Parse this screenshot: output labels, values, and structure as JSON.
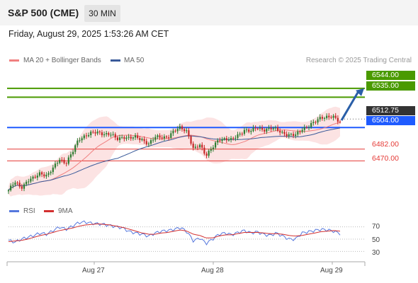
{
  "header": {
    "title": "S&P 500 (CME)",
    "timeframe": "30 MIN"
  },
  "datetime": "Friday, August 29, 2025 1:53:26 AM CET",
  "credit": "Research © 2025 Trading Central",
  "legend": {
    "ma20": "MA 20 + Bollinger Bands",
    "ma50": "MA 50",
    "rsi": "RSI",
    "rsi_ma": "9MA"
  },
  "colors": {
    "up": "#2e7d32",
    "down": "#c62828",
    "ma20": "#f08080",
    "ma50": "#3a5a9a",
    "support": "#1f5bff",
    "resistance": "#4a9a00",
    "level_red": "#e53935",
    "rsi": "#5577dd",
    "rsi_ma": "#d32f2f",
    "arrow": "#2a5fa8"
  },
  "chart_data": [
    {
      "type": "candlestick",
      "title": "",
      "xlabel": "",
      "ylabel": "",
      "x_ticks": [
        "Aug 27",
        "Aug 28",
        "Aug 29"
      ],
      "current_price": "6512.75",
      "levels": [
        {
          "label": "6544.00",
          "value": 6544.0,
          "kind": "resistance"
        },
        {
          "label": "6535.00",
          "value": 6535.0,
          "kind": "resistance"
        },
        {
          "label": "6504.00",
          "value": 6504.0,
          "kind": "pivot"
        },
        {
          "label": "6482.00",
          "value": 6482.0,
          "kind": "support"
        },
        {
          "label": "6470.00",
          "value": 6470.0,
          "kind": "support"
        }
      ],
      "close_path": [
        6440,
        6448,
        6443,
        6450,
        6452,
        6458,
        6455,
        6462,
        6472,
        6468,
        6478,
        6492,
        6496,
        6498,
        6499,
        6498,
        6497,
        6492,
        6495,
        6493,
        6494,
        6492,
        6487,
        6494,
        6495,
        6494,
        6500,
        6505,
        6500,
        6481,
        6487,
        6476,
        6483,
        6492,
        6493,
        6491,
        6496,
        6502,
        6500,
        6504,
        6502,
        6503,
        6502,
        6499,
        6496,
        6496,
        6503,
        6505,
        6509,
        6515,
        6515,
        6514,
        6510
      ],
      "ylim": [
        6432,
        6562
      ]
    },
    {
      "type": "line",
      "title": "",
      "series_names": [
        "RSI",
        "9MA"
      ],
      "y_ticks": [
        "70",
        "50",
        "30"
      ],
      "rsi": [
        48,
        45,
        50,
        53,
        56,
        60,
        58,
        64,
        70,
        66,
        71,
        77,
        78,
        76,
        75,
        74,
        72,
        70,
        68,
        62,
        60,
        58,
        55,
        60,
        63,
        64,
        66,
        69,
        62,
        47,
        52,
        43,
        50,
        58,
        60,
        57,
        61,
        64,
        60,
        62,
        58,
        56,
        60,
        55,
        50,
        50,
        60,
        62,
        64,
        66,
        65,
        63,
        59
      ],
      "rsi_ma": [
        46,
        47,
        48,
        50,
        53,
        56,
        58,
        61,
        64,
        66,
        68,
        71,
        73,
        74,
        75,
        74,
        73,
        71,
        69,
        66,
        63,
        60,
        58,
        58,
        60,
        61,
        63,
        65,
        63,
        58,
        56,
        52,
        52,
        55,
        57,
        57,
        59,
        61,
        61,
        61,
        60,
        59,
        59,
        58,
        56,
        55,
        56,
        58,
        60,
        62,
        63,
        64,
        63
      ],
      "ylim": [
        20,
        80
      ]
    }
  ]
}
